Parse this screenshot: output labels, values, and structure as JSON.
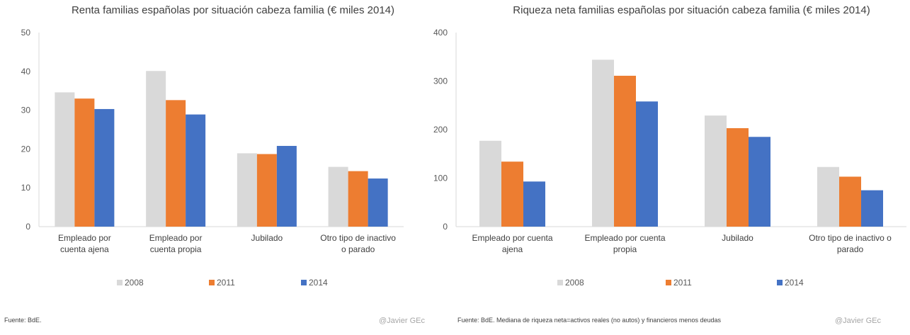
{
  "chart_data": [
    {
      "type": "bar",
      "title": "Renta familias españolas por situación cabeza familia (€ miles  2014)",
      "categories": [
        [
          "Empleado por",
          "cuenta ajena"
        ],
        [
          "Empleado por",
          "cuenta propia"
        ],
        [
          "Jubilado"
        ],
        [
          "Otro tipo de inactivo",
          "o parado"
        ]
      ],
      "series": [
        {
          "name": "2008",
          "color": "#d9d9d9",
          "values": [
            34.6,
            40.1,
            18.9,
            15.4
          ]
        },
        {
          "name": "2011",
          "color": "#ed7d31",
          "values": [
            33.0,
            32.6,
            18.7,
            14.3
          ]
        },
        {
          "name": "2014",
          "color": "#4472c4",
          "values": [
            30.3,
            28.9,
            20.8,
            12.4
          ]
        }
      ],
      "ylim": [
        0,
        50
      ],
      "yticks": [
        0,
        10,
        20,
        30,
        40,
        50
      ],
      "xlabel": "",
      "ylabel": "",
      "grid": false,
      "legend": "bottom",
      "source": "Fuente: BdE.",
      "watermark": "@Javier GEc"
    },
    {
      "type": "bar",
      "title": "Riqueza neta familias españolas por situación cabeza familia (€ miles  2014)",
      "categories": [
        [
          "Empleado por cuenta",
          "ajena"
        ],
        [
          "Empleado por cuenta",
          "propia"
        ],
        [
          "Jubilado"
        ],
        [
          "Otro tipo de inactivo o",
          "parado"
        ]
      ],
      "series": [
        {
          "name": "2008",
          "color": "#d9d9d9",
          "values": [
            177,
            344,
            229,
            123
          ]
        },
        {
          "name": "2011",
          "color": "#ed7d31",
          "values": [
            134,
            311,
            203,
            103
          ]
        },
        {
          "name": "2014",
          "color": "#4472c4",
          "values": [
            93,
            258,
            185,
            75
          ]
        }
      ],
      "ylim": [
        0,
        400
      ],
      "yticks": [
        0,
        100,
        200,
        300,
        400
      ],
      "xlabel": "",
      "ylabel": "",
      "grid": false,
      "legend": "bottom",
      "source": "Fuente: BdE. Mediana de riqueza neta=activos reales (no autos) y financieros menos deudas",
      "watermark": "@Javier GEc"
    }
  ]
}
